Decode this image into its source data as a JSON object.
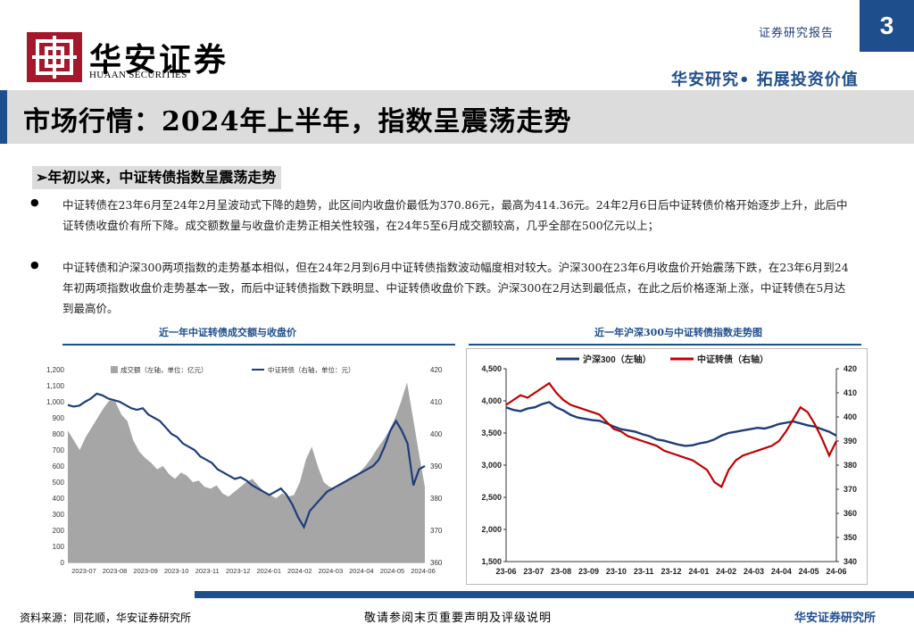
{
  "header": {
    "logo_cn": "华安证券",
    "logo_en": "HUAAN SECURITIES",
    "report_type": "证券研究报告",
    "page_number": "3",
    "slogan": "华安研究• 拓展投资价值"
  },
  "title": "市场行情：2024年上半年，指数呈震荡走势",
  "section_heading": "年初以来，中证转债指数呈震荡走势",
  "section_marker": "➢",
  "bullets": [
    "中证转债在23年6月至24年2月呈波动式下降的趋势，此区间内收盘价最低为370.86元，最高为414.36元。24年2月6日后中证转债价格开始逐步上升，此后中证转债收盘价有所下降。成交额数量与收盘价走势正相关性较强，在24年5至6月成交额较高，几乎全部在500亿元以上；",
    "中证转债和沪深300两项指数的走势基本相似，但在24年2月到6月中证转债指数波动幅度相对较大。沪深300在23年6月收盘价开始震荡下跌，在23年6月到24年初两项指数收盘价走势基本一致，而后中证转债指数下跌明显、中证转债收盘价下跌。沪深300在2月达到最低点，在此之后价格逐渐上涨，中证转债在5月达到最高价。"
  ],
  "bullet_symbol": "●",
  "chart_data": [
    {
      "type": "area",
      "title": "近一年中证转债成交额与收盘价",
      "legend": [
        "成交额（左轴，单位：亿元）",
        "中证转债（右轴，单位：元）"
      ],
      "legend_placement": "top",
      "x_ticks": [
        "2023-07",
        "2023-08",
        "2023-09",
        "2023-10",
        "2023-11",
        "2023-12",
        "2024-01",
        "2024-02",
        "2024-03",
        "2024-04",
        "2024-05",
        "2024-06"
      ],
      "y_left_ticks": [
        "1,200",
        "1,100",
        "1,000",
        "900",
        "800",
        "700",
        "600",
        "500",
        "400",
        "300",
        "200",
        "100",
        "0"
      ],
      "y_left_range": [
        0,
        1200
      ],
      "y_right_ticks": [
        "420",
        "410",
        "400",
        "390",
        "380",
        "370",
        "360"
      ],
      "y_right_range": [
        360,
        420
      ],
      "series": [
        {
          "name": "成交额（左轴，单位：亿元）",
          "color": "#a6a6a6",
          "values": [
            820,
            760,
            700,
            780,
            840,
            900,
            960,
            1010,
            1000,
            920,
            880,
            760,
            690,
            650,
            620,
            580,
            600,
            550,
            520,
            560,
            540,
            500,
            510,
            470,
            460,
            480,
            430,
            410,
            440,
            470,
            500,
            520,
            480,
            440,
            420,
            400,
            430,
            410,
            420,
            500,
            640,
            720,
            600,
            500,
            470,
            460,
            490,
            520,
            540,
            560,
            600,
            650,
            710,
            760,
            820,
            900,
            1000,
            1120,
            900,
            680,
            470
          ]
        },
        {
          "name": "中证转债（右轴，单位：元）",
          "color": "#1f3d7a",
          "values": [
            409,
            408.5,
            408.8,
            410,
            411,
            412.5,
            412,
            411,
            410.5,
            410,
            409,
            408,
            407.5,
            408,
            406,
            405,
            404,
            402,
            400,
            399,
            397,
            396,
            395,
            393,
            392,
            391,
            389,
            388,
            387,
            386,
            386.5,
            385.5,
            384,
            383,
            382,
            381,
            382,
            383,
            381,
            378,
            374,
            371,
            376,
            378,
            380,
            382,
            383,
            384,
            385,
            386,
            387,
            388,
            389,
            390,
            392,
            396,
            401,
            404,
            401,
            397,
            384,
            389,
            390
          ]
        }
      ]
    },
    {
      "type": "line",
      "title": "近一年沪深300与中证转债指数走势图",
      "legend": [
        "沪深300（左轴）",
        "中证转债（右轴）"
      ],
      "legend_placement": "top",
      "x_ticks": [
        "23-06",
        "23-07",
        "23-08",
        "23-09",
        "23-10",
        "23-11",
        "23-12",
        "24-01",
        "24-02",
        "24-03",
        "24-04",
        "24-05",
        "24-06"
      ],
      "y_left_ticks": [
        "4,500",
        "4,000",
        "3,500",
        "3,000",
        "2,500",
        "2,000",
        "1,500"
      ],
      "y_left_range": [
        1500,
        4500
      ],
      "y_right_ticks": [
        "420",
        "410",
        "400",
        "390",
        "380",
        "370",
        "360",
        "350",
        "340"
      ],
      "y_right_range": [
        340,
        420
      ],
      "series": [
        {
          "name": "沪深300（左轴）",
          "color": "#1f3d7a",
          "values": [
            3900,
            3860,
            3840,
            3880,
            3900,
            3950,
            3980,
            3900,
            3850,
            3780,
            3740,
            3720,
            3700,
            3690,
            3650,
            3600,
            3560,
            3540,
            3520,
            3480,
            3450,
            3400,
            3380,
            3350,
            3320,
            3300,
            3310,
            3340,
            3360,
            3400,
            3460,
            3500,
            3520,
            3540,
            3560,
            3580,
            3570,
            3600,
            3640,
            3660,
            3680,
            3650,
            3620,
            3600,
            3560,
            3520,
            3460
          ]
        },
        {
          "name": "中证转债（右轴）",
          "color": "#c00000",
          "values": [
            405,
            407,
            409,
            408,
            410,
            412,
            414,
            410,
            407,
            405,
            404,
            403,
            402,
            401,
            398,
            395,
            394,
            392,
            391,
            390,
            389,
            388,
            386,
            385,
            384,
            383,
            382,
            380,
            378,
            373,
            371,
            378,
            382,
            384,
            385,
            386,
            387,
            388,
            390,
            394,
            399,
            404,
            402,
            397,
            391,
            384,
            390
          ]
        }
      ]
    }
  ],
  "footer": {
    "source": "资料来源：同花顺，华安证券研究所",
    "disclaimer": "敬请参阅末页重要声明及评级说明",
    "brand": "华安证券研究所"
  }
}
